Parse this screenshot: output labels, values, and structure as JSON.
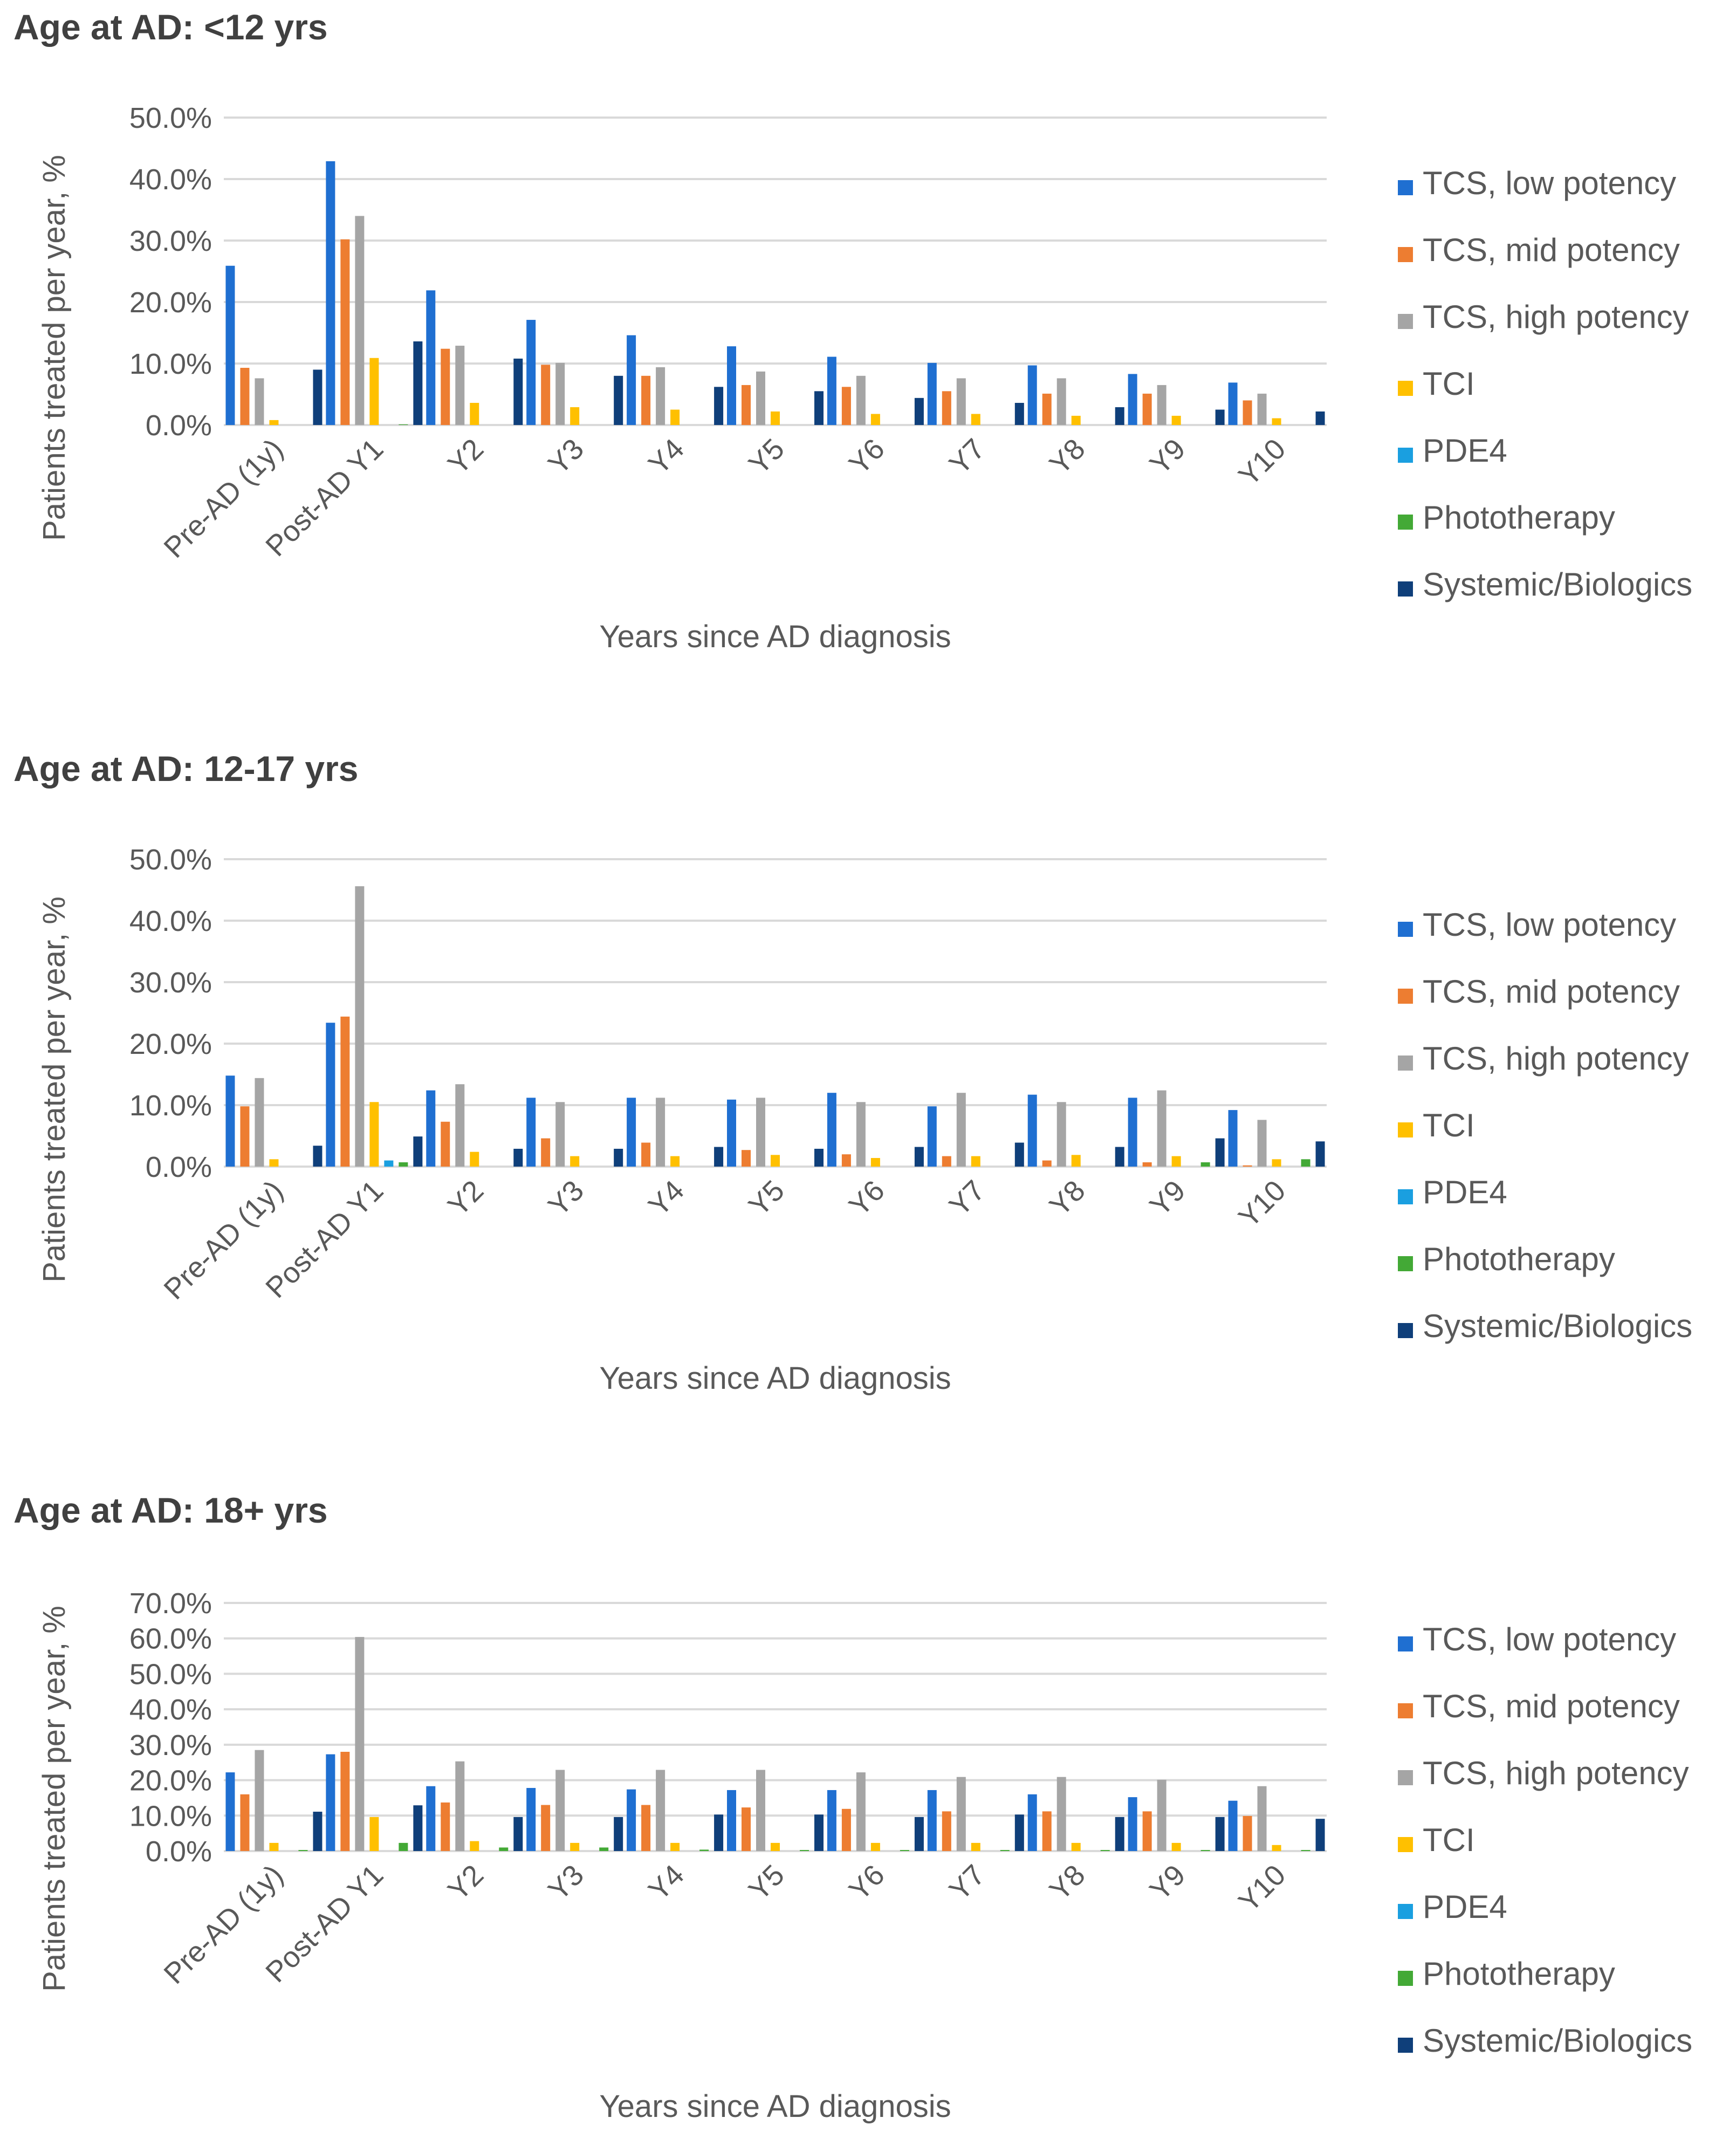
{
  "chart_data": [
    {
      "type": "bar",
      "title": "Age at AD: <12 yrs",
      "xlabel": "Years since AD diagnosis",
      "ylabel": "Patients treated per year, %",
      "ylim": [
        0,
        50
      ],
      "yticks": [
        "0.0%",
        "10.0%",
        "20.0%",
        "30.0%",
        "40.0%",
        "50.0%"
      ],
      "categories": [
        "Pre-AD (1y)",
        "Post-AD Y1",
        "Y2",
        "Y3",
        "Y4",
        "Y5",
        "Y6",
        "Y7",
        "Y8",
        "Y9",
        "Y10"
      ],
      "legend_position": "right",
      "grid": true,
      "series": [
        {
          "name": "TCS, low potency",
          "color": "#1f6fd1",
          "values": [
            25.9,
            42.9,
            21.9,
            17.1,
            14.6,
            12.8,
            11.1,
            10.1,
            9.7,
            8.3,
            6.9
          ]
        },
        {
          "name": "TCS, mid potency",
          "color": "#ed7d31",
          "values": [
            9.3,
            30.2,
            12.4,
            9.8,
            8.0,
            6.5,
            6.2,
            5.5,
            5.1,
            5.1,
            4.0
          ]
        },
        {
          "name": "TCS, high potency",
          "color": "#a5a5a5",
          "values": [
            7.6,
            34.0,
            12.9,
            10.1,
            9.4,
            8.7,
            8.0,
            7.6,
            7.6,
            6.5,
            5.1
          ]
        },
        {
          "name": "TCI",
          "color": "#ffc000",
          "values": [
            0.8,
            10.9,
            3.6,
            2.9,
            2.5,
            2.2,
            1.8,
            1.8,
            1.5,
            1.5,
            1.1
          ]
        },
        {
          "name": "PDE4",
          "color": "#1a9fe0",
          "values": [
            0,
            0,
            0,
            0,
            0,
            0,
            0,
            0,
            0,
            0,
            0
          ]
        },
        {
          "name": "Phototherapy",
          "color": "#43a936",
          "values": [
            0,
            0.1,
            0,
            0,
            0,
            0,
            0,
            0,
            0,
            0,
            0
          ]
        },
        {
          "name": "Systemic/Biologics",
          "color": "#0f3f7a",
          "values": [
            9.0,
            13.6,
            10.8,
            8.0,
            6.2,
            5.5,
            4.4,
            3.6,
            2.9,
            2.5,
            2.2
          ]
        }
      ]
    },
    {
      "type": "bar",
      "title": "Age at AD: 12-17 yrs",
      "xlabel": "Years since AD diagnosis",
      "ylabel": "Patients treated per year, %",
      "ylim": [
        0,
        50
      ],
      "yticks": [
        "0.0%",
        "10.0%",
        "20.0%",
        "30.0%",
        "40.0%",
        "50.0%"
      ],
      "categories": [
        "Pre-AD (1y)",
        "Post-AD Y1",
        "Y2",
        "Y3",
        "Y4",
        "Y5",
        "Y6",
        "Y7",
        "Y8",
        "Y9",
        "Y10"
      ],
      "legend_position": "right",
      "grid": true,
      "series": [
        {
          "name": "TCS, low potency",
          "color": "#1f6fd1",
          "values": [
            14.8,
            23.4,
            12.4,
            11.2,
            11.2,
            10.9,
            12.0,
            9.8,
            11.7,
            11.2,
            9.2
          ]
        },
        {
          "name": "TCS, mid potency",
          "color": "#ed7d31",
          "values": [
            9.8,
            24.4,
            7.3,
            4.6,
            3.9,
            2.7,
            2.0,
            1.7,
            1.0,
            0.7,
            0.2
          ]
        },
        {
          "name": "TCS, high potency",
          "color": "#a5a5a5",
          "values": [
            14.4,
            45.6,
            13.4,
            10.5,
            11.2,
            11.2,
            10.5,
            12.0,
            10.5,
            12.4,
            7.6
          ]
        },
        {
          "name": "TCI",
          "color": "#ffc000",
          "values": [
            1.2,
            10.5,
            2.4,
            1.7,
            1.7,
            1.9,
            1.4,
            1.7,
            1.9,
            1.7,
            1.2
          ]
        },
        {
          "name": "PDE4",
          "color": "#1a9fe0",
          "values": [
            0,
            1.0,
            0,
            0,
            0,
            0,
            0,
            0,
            0,
            0,
            0
          ]
        },
        {
          "name": "Phototherapy",
          "color": "#43a936",
          "values": [
            0,
            0.7,
            0,
            0,
            0,
            0,
            0,
            0,
            0,
            0.7,
            1.2
          ]
        },
        {
          "name": "Systemic/Biologics",
          "color": "#0f3f7a",
          "values": [
            3.4,
            4.9,
            2.9,
            2.9,
            3.2,
            2.9,
            3.2,
            3.9,
            3.2,
            4.6,
            4.1
          ]
        }
      ]
    },
    {
      "type": "bar",
      "title": "Age at AD: 18+ yrs",
      "xlabel": "Years since AD diagnosis",
      "ylabel": "Patients treated per year, %",
      "ylim": [
        0,
        70
      ],
      "yticks": [
        "0.0%",
        "10.0%",
        "20.0%",
        "30.0%",
        "40.0%",
        "50.0%",
        "60.0%",
        "70.0%"
      ],
      "categories": [
        "Pre-AD (1y)",
        "Post-AD Y1",
        "Y2",
        "Y3",
        "Y4",
        "Y5",
        "Y6",
        "Y7",
        "Y8",
        "Y9",
        "Y10"
      ],
      "legend_position": "right",
      "grid": true,
      "series": [
        {
          "name": "TCS, low potency",
          "color": "#1f6fd1",
          "values": [
            22.2,
            27.3,
            18.3,
            17.8,
            17.4,
            17.2,
            17.2,
            17.2,
            16.0,
            15.2,
            14.2
          ]
        },
        {
          "name": "TCS, mid potency",
          "color": "#ed7d31",
          "values": [
            16.0,
            28.0,
            13.7,
            13.0,
            13.0,
            12.3,
            11.9,
            11.2,
            11.2,
            11.2,
            9.9
          ]
        },
        {
          "name": "TCS, high potency",
          "color": "#a5a5a5",
          "values": [
            28.5,
            60.4,
            25.3,
            22.9,
            22.9,
            22.9,
            22.2,
            20.9,
            20.9,
            20.1,
            18.3
          ]
        },
        {
          "name": "TCI",
          "color": "#ffc000",
          "values": [
            2.3,
            9.6,
            2.8,
            2.3,
            2.3,
            2.3,
            2.3,
            2.3,
            2.3,
            2.3,
            1.7
          ]
        },
        {
          "name": "PDE4",
          "color": "#1a9fe0",
          "values": [
            0,
            0,
            0,
            0,
            0,
            0,
            0,
            0,
            0,
            0,
            0
          ]
        },
        {
          "name": "Phototherapy",
          "color": "#43a936",
          "values": [
            0.3,
            2.3,
            1.0,
            1.0,
            0.4,
            0.3,
            0.3,
            0.3,
            0.3,
            0.3,
            0.3
          ]
        },
        {
          "name": "Systemic/Biologics",
          "color": "#0f3f7a",
          "values": [
            11.1,
            12.9,
            9.6,
            9.6,
            10.3,
            10.3,
            9.6,
            10.3,
            9.6,
            9.6,
            9.1
          ]
        }
      ]
    }
  ]
}
